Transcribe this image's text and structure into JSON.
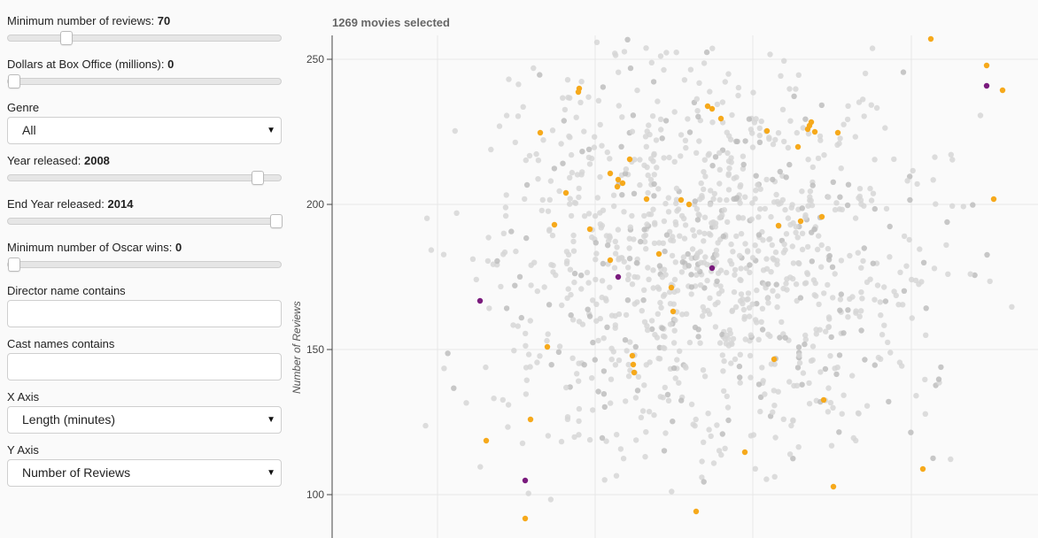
{
  "controls": {
    "min_reviews": {
      "label": "Minimum number of reviews:",
      "value": "70",
      "thumb_fraction": 0.2
    },
    "box_office": {
      "label": "Dollars at Box Office (millions):",
      "value": "0",
      "thumb_fraction": 0.0
    },
    "genre": {
      "label": "Genre",
      "selected": "All"
    },
    "year_released": {
      "label": "Year released:",
      "value": "2008",
      "thumb_fraction": 0.93
    },
    "end_year_released": {
      "label": "End Year released:",
      "value": "2014",
      "thumb_fraction": 1.0
    },
    "min_oscar_wins": {
      "label": "Minimum number of Oscar wins:",
      "value": "0",
      "thumb_fraction": 0.0
    },
    "director_name": {
      "label": "Director name contains",
      "value": "",
      "placeholder": ""
    },
    "cast_names": {
      "label": "Cast names contains",
      "value": "",
      "placeholder": ""
    },
    "x_axis": {
      "label": "X Axis",
      "selected": "Length (minutes)"
    },
    "y_axis": {
      "label": "Y Axis",
      "selected": "Number of Reviews"
    }
  },
  "plot": {
    "selected_text": "1269 movies selected",
    "ylabel": "Number of Reviews",
    "y_ticks": [
      "250",
      "200",
      "150",
      "100"
    ],
    "colors": {
      "gray": "#d6d6d6",
      "gray_dark": "#bdbdbd",
      "orange": "#f6a91b",
      "purple": "#7a1b7d",
      "grid": "#e8e8e8",
      "axis": "#444444"
    }
  }
}
